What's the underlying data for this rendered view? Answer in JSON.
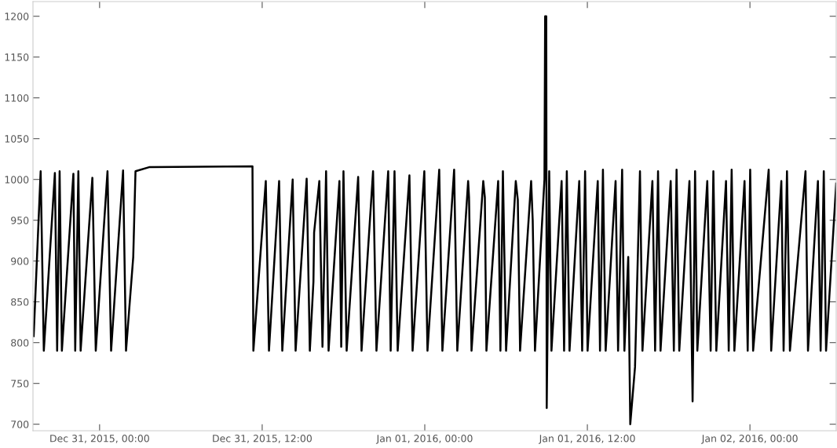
{
  "chart_data": {
    "type": "line",
    "color": "#000000",
    "line_style": "solid",
    "marker": "none",
    "grid": false,
    "legend": false,
    "x": [
      "2015-12-30T19:08",
      "2015-12-30T19:39",
      "2015-12-30T19:53",
      "2015-12-30T20:42",
      "2015-12-30T20:52",
      "2015-12-30T21:03",
      "2015-12-30T21:13",
      "2015-12-30T22:04",
      "2015-12-30T22:12",
      "2015-12-30T22:26",
      "2015-12-30T22:36",
      "2015-12-30T23:28",
      "2015-12-30T23:43",
      "2015-12-31T00:35",
      "2015-12-31T00:51",
      "2015-12-31T01:44",
      "2015-12-31T01:57",
      "2015-12-31T02:29",
      "2015-12-31T02:39",
      "2015-12-31T03:39",
      "2015-12-31T11:17",
      "2015-12-31T11:21",
      "2015-12-31T12:16",
      "2015-12-31T12:30",
      "2015-12-31T13:15",
      "2015-12-31T13:29",
      "2015-12-31T14:15",
      "2015-12-31T14:28",
      "2015-12-31T15:17",
      "2015-12-31T15:31",
      "2015-12-31T15:47",
      "2015-12-31T15:50",
      "2015-12-31T16:13",
      "2015-12-31T16:27",
      "2015-12-31T16:43",
      "2015-12-31T16:54",
      "2015-12-31T17:42",
      "2015-12-31T17:50",
      "2015-12-31T18:00",
      "2015-12-31T18:14",
      "2015-12-31T19:05",
      "2015-12-31T19:20",
      "2015-12-31T20:11",
      "2015-12-31T20:26",
      "2015-12-31T21:18",
      "2015-12-31T21:29",
      "2015-12-31T21:46",
      "2015-12-31T22:00",
      "2015-12-31T22:52",
      "2015-12-31T23:06",
      "2015-12-31T23:58",
      "2016-01-01T00:12",
      "2016-01-01T01:04",
      "2016-01-01T01:18",
      "2016-01-01T02:10",
      "2016-01-01T02:24",
      "2016-01-01T03:12",
      "2016-01-01T03:16",
      "2016-01-01T03:27",
      "2016-01-01T04:19",
      "2016-01-01T04:26",
      "2016-01-01T04:33",
      "2016-01-01T05:25",
      "2016-01-01T05:35",
      "2016-01-01T05:46",
      "2016-01-01T06:00",
      "2016-01-01T06:43",
      "2016-01-01T06:52",
      "2016-01-01T07:02",
      "2016-01-01T07:51",
      "2016-01-01T07:58",
      "2016-01-01T08:08",
      "2016-01-01T08:50",
      "2016-01-01T08:53",
      "2016-01-01T08:58",
      "2016-01-01T09:00",
      "2016-01-01T09:11",
      "2016-01-01T09:21",
      "2016-01-01T10:06",
      "2016-01-01T10:17",
      "2016-01-01T10:29",
      "2016-01-01T10:41",
      "2016-01-01T11:24",
      "2016-01-01T11:37",
      "2016-01-01T11:50",
      "2016-01-01T12:01",
      "2016-01-01T12:46",
      "2016-01-01T12:56",
      "2016-01-01T13:09",
      "2016-01-01T13:21",
      "2016-01-01T14:05",
      "2016-01-01T14:16",
      "2016-01-01T14:34",
      "2016-01-01T14:44",
      "2016-01-01T15:01",
      "2016-01-01T15:10",
      "2016-01-01T15:31",
      "2016-01-01T15:53",
      "2016-01-01T16:04",
      "2016-01-01T16:48",
      "2016-01-01T17:00",
      "2016-01-01T17:13",
      "2016-01-01T17:24",
      "2016-01-01T18:09",
      "2016-01-01T18:23",
      "2016-01-01T18:35",
      "2016-01-01T18:47",
      "2016-01-01T19:32",
      "2016-01-01T19:46",
      "2016-01-01T19:57",
      "2016-01-01T20:07",
      "2016-01-01T20:51",
      "2016-01-01T21:06",
      "2016-01-01T21:18",
      "2016-01-01T21:31",
      "2016-01-01T22:14",
      "2016-01-01T22:26",
      "2016-01-01T22:39",
      "2016-01-01T22:51",
      "2016-01-01T23:36",
      "2016-01-01T23:50",
      "2016-01-02T00:01",
      "2016-01-02T00:14",
      "2016-01-02T01:23",
      "2016-01-02T01:34",
      "2016-01-02T02:19",
      "2016-01-02T02:29",
      "2016-01-02T02:44",
      "2016-01-02T02:57",
      "2016-01-02T04:06",
      "2016-01-02T04:17",
      "2016-01-02T05:01",
      "2016-01-02T05:13",
      "2016-01-02T05:27",
      "2016-01-02T05:37",
      "2016-01-02T06:22"
    ],
    "values": [
      808,
      1010,
      790,
      1008,
      790,
      1010,
      790,
      1007,
      790,
      1010,
      790,
      1002,
      790,
      1010,
      790,
      1011,
      790,
      905,
      1010,
      1015,
      1016,
      790,
      998,
      790,
      998,
      790,
      1000,
      790,
      1001,
      790,
      875,
      935,
      998,
      795,
      1010,
      790,
      998,
      795,
      1010,
      790,
      1003,
      790,
      1010,
      790,
      1010,
      790,
      1010,
      790,
      1005,
      790,
      1010,
      790,
      1012,
      790,
      1012,
      790,
      998,
      978,
      790,
      998,
      978,
      790,
      998,
      790,
      1010,
      790,
      998,
      975,
      790,
      998,
      950,
      790,
      1000,
      1200,
      1200,
      720,
      1010,
      790,
      998,
      790,
      1010,
      790,
      998,
      790,
      1010,
      790,
      998,
      790,
      1012,
      790,
      998,
      790,
      1012,
      790,
      905,
      700,
      770,
      1010,
      790,
      998,
      790,
      1010,
      790,
      998,
      790,
      1012,
      790,
      998,
      728,
      1010,
      790,
      998,
      790,
      1010,
      790,
      998,
      790,
      1012,
      790,
      998,
      790,
      1012,
      790,
      1012,
      790,
      998,
      790,
      1010,
      790,
      1010,
      790,
      998,
      790,
      1010,
      790,
      995
    ],
    "xlim": [
      "2015-12-30T19:05",
      "2016-01-02T06:22"
    ],
    "xticks": [
      {
        "value": "2015-12-31T00:00",
        "label": "Dec 31, 2015, 00:00"
      },
      {
        "value": "2015-12-31T12:00",
        "label": "Dec 31, 2015, 12:00"
      },
      {
        "value": "2016-01-01T00:00",
        "label": "Jan 01, 2016, 00:00"
      },
      {
        "value": "2016-01-01T12:00",
        "label": "Jan 01, 2016, 12:00"
      },
      {
        "value": "2016-01-02T00:00",
        "label": "Jan 02, 2016, 00:00"
      }
    ],
    "ylim": [
      692,
      1218
    ],
    "yticks": [
      700,
      750,
      800,
      850,
      900,
      950,
      1000,
      1050,
      1100,
      1150,
      1200
    ]
  }
}
